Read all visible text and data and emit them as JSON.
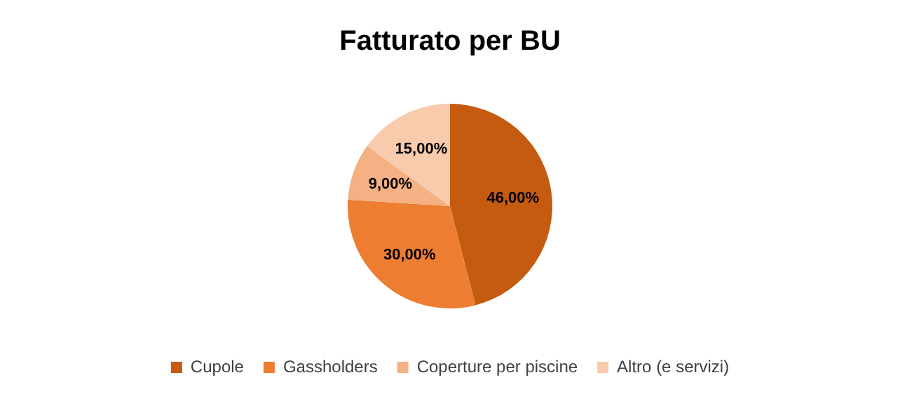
{
  "chart_data": {
    "type": "pie",
    "title": "Fatturato per BU",
    "categories": [
      "Cupole",
      "Gassholders",
      "Coperture per piscine",
      "Altro (e servizi)"
    ],
    "values": [
      46,
      30,
      9,
      15
    ],
    "value_labels": [
      "46,00%",
      "30,00%",
      "9,00%",
      "15,00%"
    ],
    "colors": [
      "#c55a11",
      "#ed7d31",
      "#f4b183",
      "#f8cbad"
    ],
    "legend": "bottom"
  }
}
